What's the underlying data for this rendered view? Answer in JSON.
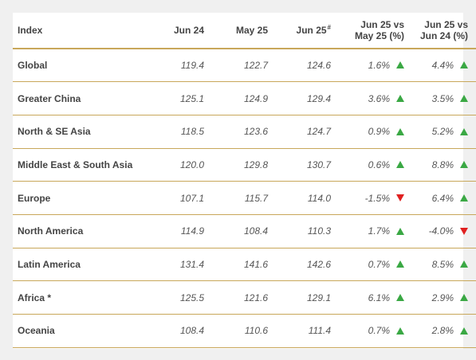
{
  "table": {
    "headers": {
      "index": "Index",
      "jun24": "Jun 24",
      "may25": "May 25",
      "jun25": "Jun 25",
      "jun25_mark": "#",
      "mom_line1": "Jun 25 vs",
      "mom_line2": "May 25 (%)",
      "yoy_line1": "Jun 25 vs",
      "yoy_line2": "Jun 24 (%)"
    },
    "rows": [
      {
        "name": "Global",
        "jun24": "119.4",
        "may25": "122.7",
        "jun25": "124.6",
        "mom": "1.6%",
        "mom_dir": "up",
        "yoy": "4.4%",
        "yoy_dir": "up"
      },
      {
        "name": "Greater China",
        "jun24": "125.1",
        "may25": "124.9",
        "jun25": "129.4",
        "mom": "3.6%",
        "mom_dir": "up",
        "yoy": "3.5%",
        "yoy_dir": "up"
      },
      {
        "name": "North & SE Asia",
        "jun24": "118.5",
        "may25": "123.6",
        "jun25": "124.7",
        "mom": "0.9%",
        "mom_dir": "up",
        "yoy": "5.2%",
        "yoy_dir": "up"
      },
      {
        "name": "Middle East & South Asia",
        "jun24": "120.0",
        "may25": "129.8",
        "jun25": "130.7",
        "mom": "0.6%",
        "mom_dir": "up",
        "yoy": "8.8%",
        "yoy_dir": "up"
      },
      {
        "name": "Europe",
        "jun24": "107.1",
        "may25": "115.7",
        "jun25": "114.0",
        "mom": "-1.5%",
        "mom_dir": "down",
        "yoy": "6.4%",
        "yoy_dir": "up"
      },
      {
        "name": "North America",
        "jun24": "114.9",
        "may25": "108.4",
        "jun25": "110.3",
        "mom": "1.7%",
        "mom_dir": "up",
        "yoy": "-4.0%",
        "yoy_dir": "down"
      },
      {
        "name": "Latin America",
        "jun24": "131.4",
        "may25": "141.6",
        "jun25": "142.6",
        "mom": "0.7%",
        "mom_dir": "up",
        "yoy": "8.5%",
        "yoy_dir": "up"
      },
      {
        "name": "Africa *",
        "jun24": "125.5",
        "may25": "121.6",
        "jun25": "129.1",
        "mom": "6.1%",
        "mom_dir": "up",
        "yoy": "2.9%",
        "yoy_dir": "up"
      },
      {
        "name": "Oceania",
        "jun24": "108.4",
        "may25": "110.6",
        "jun25": "111.4",
        "mom": "0.7%",
        "mom_dir": "up",
        "yoy": "2.8%",
        "yoy_dir": "up"
      }
    ]
  },
  "colors": {
    "rule": "#c8a75a",
    "up": "#3aa844",
    "down": "#e02020",
    "page_bg": "#f0f0f0",
    "card_bg": "#ffffff"
  },
  "icons": {
    "up": "triangle-up-icon",
    "down": "triangle-down-icon"
  }
}
